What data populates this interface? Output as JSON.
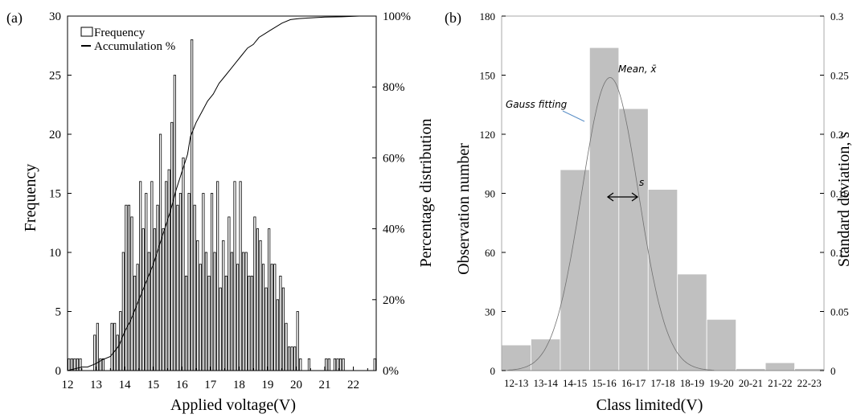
{
  "chart_data": [
    {
      "panel_label": "(a)",
      "type": "bar",
      "xlabel": "Applied voltage(V)",
      "ylabel": "Frequency",
      "ylabel_right": "Percentage distribution",
      "xlim": [
        12,
        22.8
      ],
      "ylim": [
        0,
        30
      ],
      "ylim_right": [
        0,
        100
      ],
      "x_ticks": [
        "12",
        "13",
        "14",
        "15",
        "16",
        "17",
        "18",
        "19",
        "20",
        "21",
        "22"
      ],
      "y_ticks": [
        "0",
        "5",
        "10",
        "15",
        "20",
        "25",
        "30"
      ],
      "y_ticks_right": [
        "0%",
        "20%",
        "40%",
        "60%",
        "80%",
        "100%"
      ],
      "legend": {
        "position": "top-left",
        "entries": [
          "Frequency",
          "Accumulation %"
        ]
      },
      "series": [
        {
          "name": "Frequency",
          "type": "bar",
          "bin_width": 0.1,
          "x": [
            12.0,
            12.1,
            12.2,
            12.3,
            12.4,
            12.5,
            12.9,
            13.0,
            13.1,
            13.2,
            13.5,
            13.6,
            13.7,
            13.8,
            13.9,
            14.0,
            14.1,
            14.2,
            14.3,
            14.4,
            14.5,
            14.6,
            14.7,
            14.8,
            14.9,
            15.0,
            15.1,
            15.2,
            15.3,
            15.4,
            15.5,
            15.6,
            15.7,
            15.8,
            15.9,
            16.0,
            16.1,
            16.2,
            16.3,
            16.4,
            16.5,
            16.6,
            16.7,
            16.8,
            16.9,
            17.0,
            17.1,
            17.2,
            17.3,
            17.4,
            17.5,
            17.6,
            17.7,
            17.8,
            17.9,
            18.0,
            18.1,
            18.2,
            18.3,
            18.4,
            18.5,
            18.6,
            18.7,
            18.8,
            18.9,
            19.0,
            19.1,
            19.2,
            19.3,
            19.4,
            19.5,
            19.6,
            19.7,
            19.8,
            19.9,
            20.0,
            20.1,
            20.4,
            21.0,
            21.1,
            21.3,
            21.4,
            21.5,
            21.6,
            22.7
          ],
          "values": [
            1,
            1,
            1,
            1,
            1,
            0,
            3,
            4,
            1,
            1,
            4,
            4,
            3,
            5,
            10,
            14,
            14,
            13,
            8,
            9,
            16,
            12,
            15,
            10,
            16,
            12,
            14,
            20,
            12,
            16,
            17,
            21,
            25,
            14,
            15,
            18,
            8,
            15,
            28,
            14,
            11,
            9,
            15,
            10,
            8,
            15,
            10,
            16,
            7,
            11,
            8,
            13,
            10,
            16,
            9,
            16,
            10,
            10,
            8,
            8,
            13,
            12,
            11,
            9,
            7,
            12,
            9,
            9,
            6,
            8,
            7,
            4,
            2,
            2,
            2,
            5,
            1,
            1,
            1,
            1,
            1,
            1,
            1,
            1,
            1
          ]
        },
        {
          "name": "Accumulation %",
          "type": "line",
          "axis": "right",
          "x": [
            12.0,
            12.5,
            12.7,
            13.0,
            13.2,
            13.5,
            13.8,
            14.0,
            14.2,
            14.4,
            14.6,
            14.8,
            15.0,
            15.2,
            15.4,
            15.6,
            15.8,
            16.0,
            16.2,
            16.3,
            16.5,
            16.7,
            16.9,
            17.1,
            17.3,
            17.5,
            17.7,
            17.9,
            18.1,
            18.3,
            18.5,
            18.7,
            18.9,
            19.1,
            19.3,
            19.5,
            19.8,
            20.1,
            20.5,
            21.0,
            21.6,
            22.2,
            22.8
          ],
          "values": [
            0,
            1,
            1,
            2,
            3,
            4,
            7,
            11,
            14,
            18,
            22,
            26,
            30,
            35,
            40,
            45,
            51,
            56,
            61,
            66,
            70,
            73,
            76,
            78,
            81,
            83,
            85,
            87,
            89,
            91,
            92,
            94,
            95,
            96,
            97,
            98,
            99,
            99.3,
            99.5,
            99.7,
            99.8,
            100,
            100
          ]
        }
      ]
    },
    {
      "panel_label": "(b)",
      "type": "bar",
      "xlabel": "Class limited(V)",
      "ylabel": "Observation number",
      "ylabel_right": "Standard deviation, s",
      "ylim": [
        0,
        180
      ],
      "ylim_right": [
        0,
        0.3
      ],
      "y_ticks": [
        "0",
        "30",
        "60",
        "90",
        "120",
        "150",
        "180"
      ],
      "y_ticks_right": [
        "0",
        "0.05",
        "0.1",
        "0.15",
        "0.2",
        "0.25",
        "0.3"
      ],
      "categories": [
        "12-13",
        "13-14",
        "14-15",
        "15-16",
        "16-17",
        "17-18",
        "18-19",
        "19-20",
        "20-21",
        "21-22",
        "22-23"
      ],
      "values": [
        13,
        16,
        102,
        164,
        133,
        92,
        49,
        26,
        1,
        4,
        1
      ],
      "fit": {
        "name": "Gauss fitting",
        "mean": 15.7,
        "std": 0.97,
        "peak": 0.248
      },
      "annotations": {
        "gauss_label": "Gauss fitting",
        "mean_label": "Mean, x̄",
        "std_label": "s"
      }
    }
  ]
}
